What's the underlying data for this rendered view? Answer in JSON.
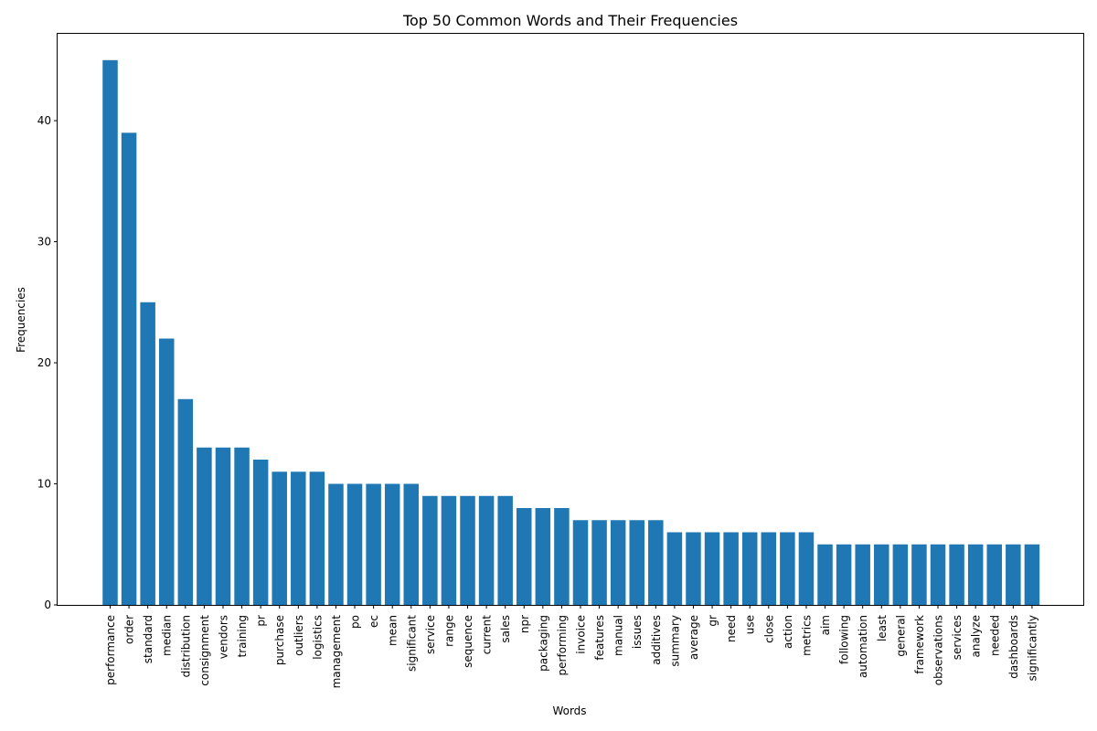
{
  "chart_data": {
    "type": "bar",
    "title": "Top 50 Common Words and Their Frequencies",
    "xlabel": "Words",
    "ylabel": "Frequencies",
    "ylim": [
      0,
      47.25
    ],
    "yticks": [
      0,
      10,
      20,
      30,
      40
    ],
    "bar_color": "#1f77b4",
    "grid": false,
    "legend": "none",
    "categories": [
      "performance",
      "order",
      "standard",
      "median",
      "distribution",
      "consignment",
      "vendors",
      "training",
      "pr",
      "purchase",
      "outliers",
      "logistics",
      "management",
      "po",
      "ec",
      "mean",
      "significant",
      "service",
      "range",
      "sequence",
      "current",
      "sales",
      "npr",
      "packaging",
      "performing",
      "invoice",
      "features",
      "manual",
      "issues",
      "additives",
      "summary",
      "average",
      "gr",
      "need",
      "use",
      "close",
      "action",
      "metrics",
      "aim",
      "following",
      "automation",
      "least",
      "general",
      "framework",
      "observations",
      "services",
      "analyze",
      "needed",
      "dashboards",
      "significantly"
    ],
    "values": [
      45,
      39,
      25,
      22,
      17,
      13,
      13,
      13,
      12,
      11,
      11,
      11,
      10,
      10,
      10,
      10,
      10,
      9,
      9,
      9,
      9,
      9,
      8,
      8,
      8,
      7,
      7,
      7,
      7,
      7,
      6,
      6,
      6,
      6,
      6,
      6,
      6,
      6,
      5,
      5,
      5,
      5,
      5,
      5,
      5,
      5,
      5,
      5,
      5,
      5
    ]
  }
}
